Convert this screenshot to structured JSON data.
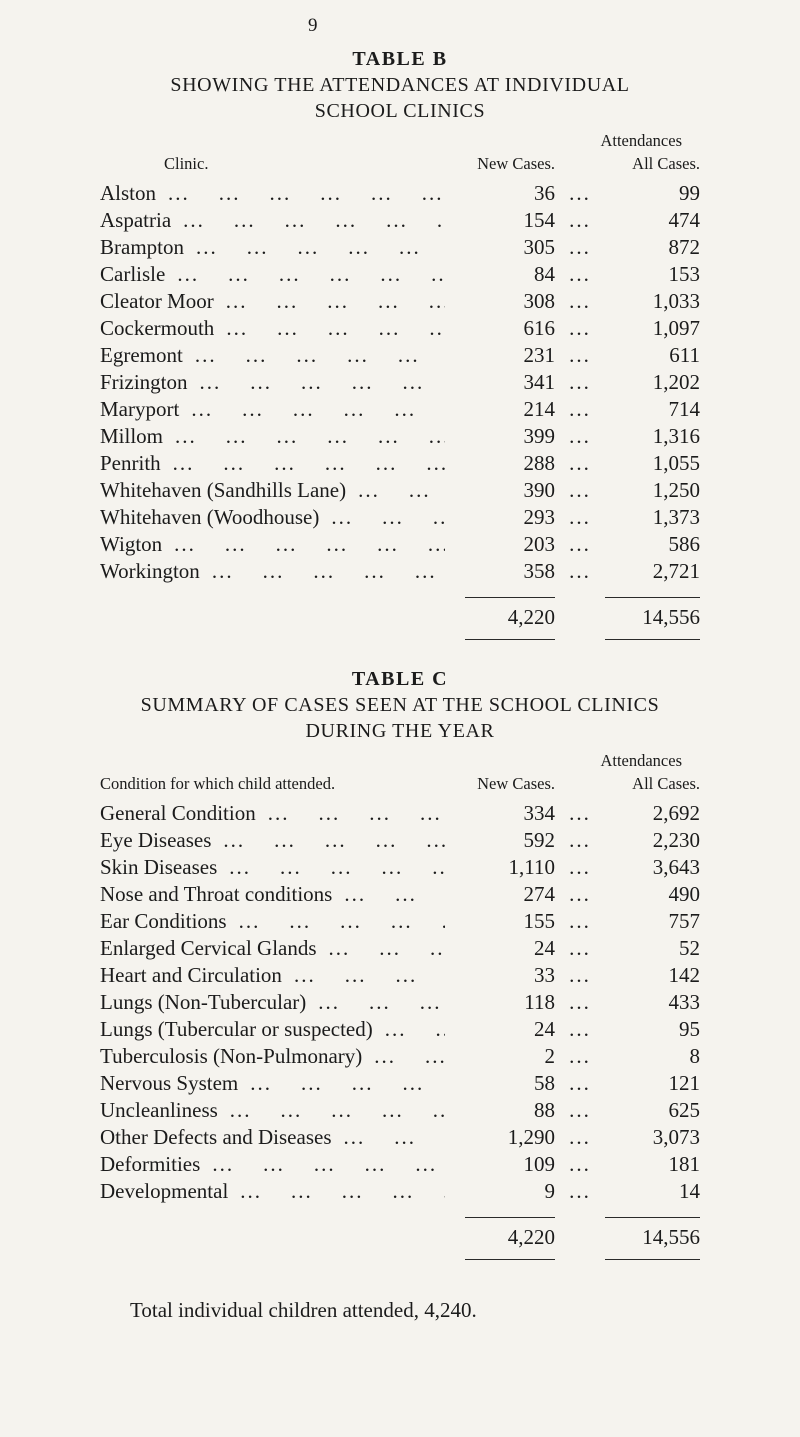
{
  "page_number": "9",
  "table_b": {
    "title": "TABLE B",
    "subtitle_line1": "SHOWING THE ATTENDANCES AT INDIVIDUAL",
    "subtitle_line2": "SCHOOL CLINICS",
    "headers": {
      "attendances": "Attendances",
      "clinic": "Clinic.",
      "new_cases": "New Cases.",
      "all_cases": "All Cases."
    },
    "rows": [
      {
        "label": "Alston",
        "new_cases": "36",
        "all_cases": "99"
      },
      {
        "label": "Aspatria",
        "new_cases": "154",
        "all_cases": "474"
      },
      {
        "label": "Brampton",
        "new_cases": "305",
        "all_cases": "872"
      },
      {
        "label": "Carlisle",
        "new_cases": "84",
        "all_cases": "153"
      },
      {
        "label": "Cleator Moor",
        "new_cases": "308",
        "all_cases": "1,033"
      },
      {
        "label": "Cockermouth",
        "new_cases": "616",
        "all_cases": "1,097"
      },
      {
        "label": "Egremont",
        "new_cases": "231",
        "all_cases": "611"
      },
      {
        "label": "Frizington",
        "new_cases": "341",
        "all_cases": "1,202"
      },
      {
        "label": "Maryport",
        "new_cases": "214",
        "all_cases": "714"
      },
      {
        "label": "Millom",
        "new_cases": "399",
        "all_cases": "1,316"
      },
      {
        "label": "Penrith",
        "new_cases": "288",
        "all_cases": "1,055"
      },
      {
        "label": "Whitehaven (Sandhills Lane)",
        "new_cases": "390",
        "all_cases": "1,250"
      },
      {
        "label": "Whitehaven (Woodhouse)",
        "new_cases": "293",
        "all_cases": "1,373"
      },
      {
        "label": "Wigton",
        "new_cases": "203",
        "all_cases": "586"
      },
      {
        "label": "Workington",
        "new_cases": "358",
        "all_cases": "2,721"
      }
    ],
    "total_new_cases": "4,220",
    "total_all_cases": "14,556"
  },
  "table_c": {
    "title": "TABLE C",
    "subtitle_line1": "SUMMARY OF CASES SEEN AT THE SCHOOL CLINICS",
    "subtitle_line2": "DURING THE YEAR",
    "headers": {
      "attendances": "Attendances",
      "condition": "Condition for which child attended.",
      "new_cases": "New Cases.",
      "all_cases": "All Cases."
    },
    "rows": [
      {
        "label": "General Condition",
        "new_cases": "334",
        "all_cases": "2,692"
      },
      {
        "label": "Eye Diseases",
        "new_cases": "592",
        "all_cases": "2,230"
      },
      {
        "label": "Skin Diseases",
        "new_cases": "1,110",
        "all_cases": "3,643"
      },
      {
        "label": "Nose and Throat conditions",
        "new_cases": "274",
        "all_cases": "490"
      },
      {
        "label": "Ear Conditions",
        "new_cases": "155",
        "all_cases": "757"
      },
      {
        "label": "Enlarged Cervical Glands",
        "new_cases": "24",
        "all_cases": "52"
      },
      {
        "label": "Heart and Circulation",
        "new_cases": "33",
        "all_cases": "142"
      },
      {
        "label": "Lungs (Non-Tubercular)",
        "new_cases": "118",
        "all_cases": "433"
      },
      {
        "label": "Lungs (Tubercular or suspected)",
        "new_cases": "24",
        "all_cases": "95"
      },
      {
        "label": "Tuberculosis (Non-Pulmonary)",
        "new_cases": "2",
        "all_cases": "8"
      },
      {
        "label": "Nervous System",
        "new_cases": "58",
        "all_cases": "121"
      },
      {
        "label": "Uncleanliness",
        "new_cases": "88",
        "all_cases": "625"
      },
      {
        "label": "Other Defects and Diseases",
        "new_cases": "1,290",
        "all_cases": "3,073"
      },
      {
        "label": "Deformities",
        "new_cases": "109",
        "all_cases": "181"
      },
      {
        "label": "Developmental",
        "new_cases": "9",
        "all_cases": "14"
      }
    ],
    "total_new_cases": "4,220",
    "total_all_cases": "14,556"
  },
  "footer": "Total individual children attended, 4,240."
}
